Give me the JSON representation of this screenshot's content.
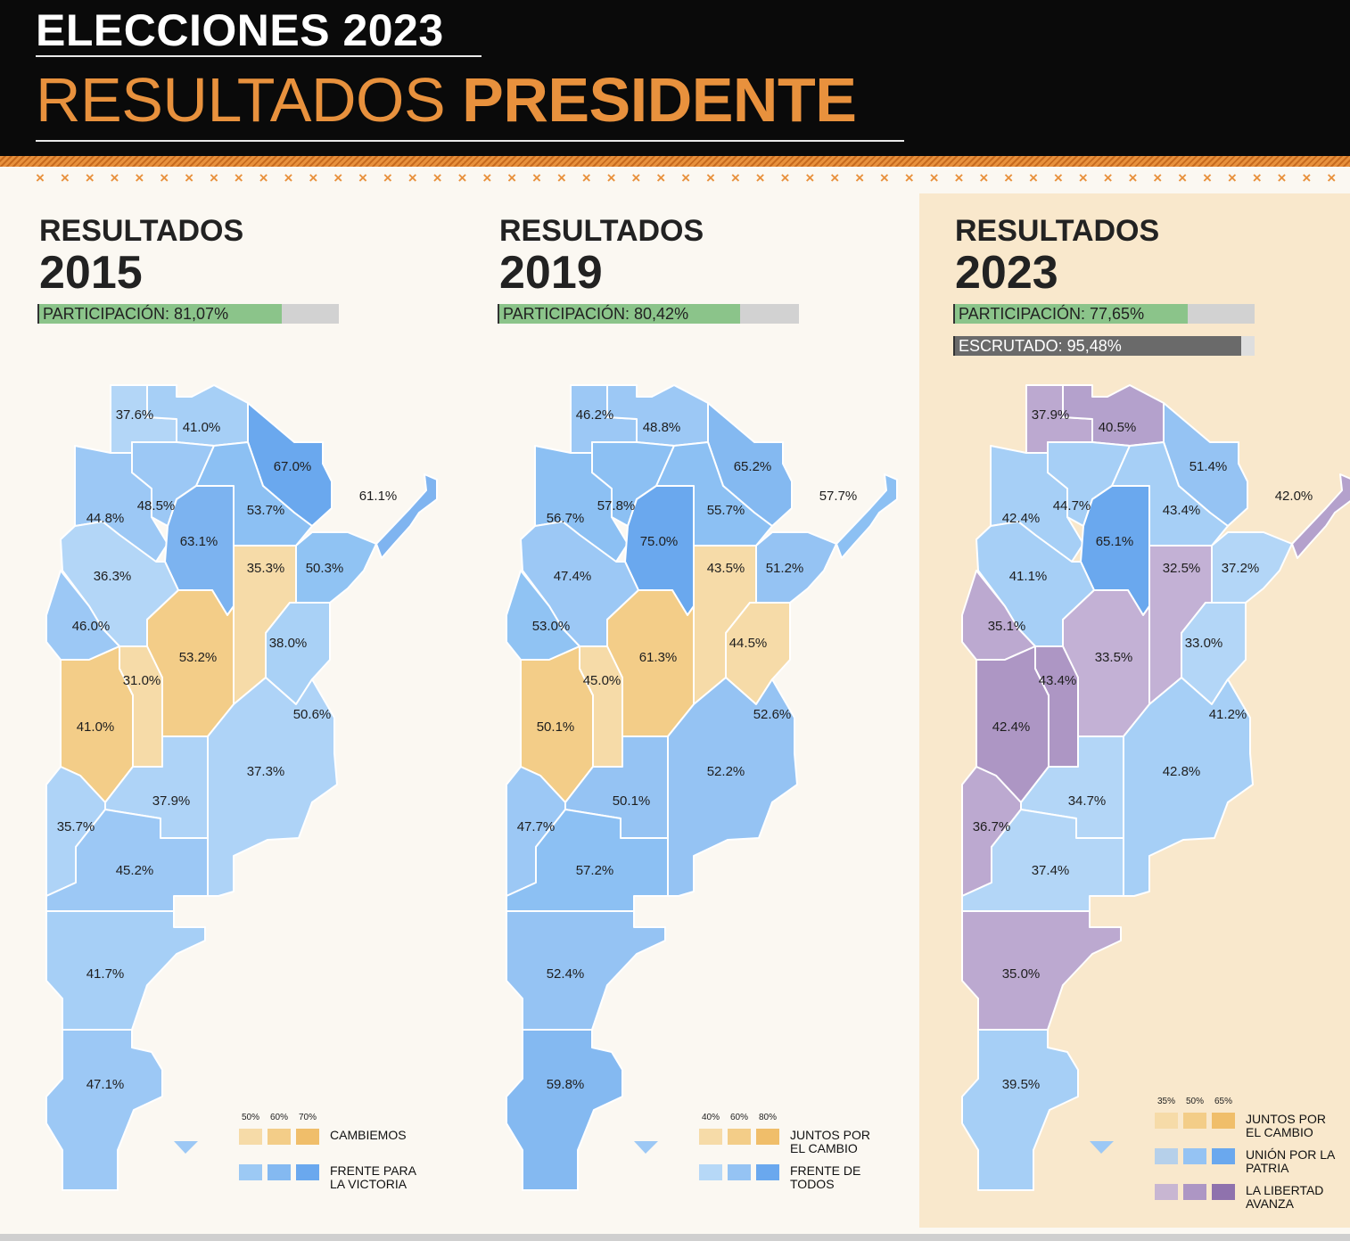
{
  "header": {
    "kicker": "ELECCIONES 2023",
    "title_part1": "RESULTADOS",
    "title_part2": "PRESIDENTE"
  },
  "colors": {
    "header_bg": "#0a0a0a",
    "accent": "#e8913d",
    "page_bg": "#fbf8f2",
    "highlight_bg": "#f9e8cc"
  },
  "decoration": "× × × × × × × × × × × × × × × × × × × × × × × × × × × × × × × × × × × × × × × × × × × × × × × × × × × × × × × × × × × × × × × × × × × × × × × × × × × ×",
  "panels": [
    {
      "label": "RESULTADOS",
      "year": "2015",
      "participation_label": "PARTICIPACIÓN: 81,07%",
      "participation": 81.07,
      "scale": [
        "50%",
        "60%",
        "70%"
      ],
      "legend": [
        {
          "name": "CAMBIEMOS",
          "colors": [
            "#f6dba8",
            "#f3cd88",
            "#f0be6a"
          ]
        },
        {
          "name": "FRENTE PARA LA VICTORIA",
          "colors": [
            "#9cc9f4",
            "#84b9f1",
            "#6aa8ee"
          ]
        }
      ],
      "provinces": [
        {
          "id": "jujuy",
          "value": "37.6%",
          "color": "#b3d6f7"
        },
        {
          "id": "salta-n",
          "value": "41.0%",
          "color": "#a6cff6"
        },
        {
          "id": "formosa",
          "value": "67.0%",
          "color": "#6aa8ee"
        },
        {
          "id": "misiones",
          "value": "61.1%",
          "color": "#7fb4f0"
        },
        {
          "id": "catamarca",
          "value": "44.8%",
          "color": "#9cc8f5"
        },
        {
          "id": "tucuman",
          "value": "48.5%",
          "color": "#9cc8f5"
        },
        {
          "id": "sgo-estero",
          "value": "63.1%",
          "color": "#7cb3f0"
        },
        {
          "id": "chaco",
          "value": "53.7%",
          "color": "#8cc0f3"
        },
        {
          "id": "corrientes",
          "value": "50.3%",
          "color": "#90c3f3"
        },
        {
          "id": "la-rioja",
          "value": "36.3%",
          "color": "#b3d6f7"
        },
        {
          "id": "santa-fe",
          "value": "35.3%",
          "color": "#f6dba8"
        },
        {
          "id": "san-juan",
          "value": "46.0%",
          "color": "#9cc8f5"
        },
        {
          "id": "cordoba",
          "value": "53.2%",
          "color": "#f3cd88"
        },
        {
          "id": "entre-rios",
          "value": "38.0%",
          "color": "#a9d1f6"
        },
        {
          "id": "san-luis",
          "value": "31.0%",
          "color": "#f6dba8"
        },
        {
          "id": "caba",
          "value": "50.6%",
          "color": "#f3cd88"
        },
        {
          "id": "mendoza",
          "value": "41.0%",
          "color": "#f3cd88"
        },
        {
          "id": "buenos-aires",
          "value": "37.3%",
          "color": "#aed3f7"
        },
        {
          "id": "la-pampa",
          "value": "37.9%",
          "color": "#aed3f7"
        },
        {
          "id": "neuquen",
          "value": "35.7%",
          "color": "#aed3f7"
        },
        {
          "id": "rio-negro",
          "value": "45.2%",
          "color": "#9cc8f5"
        },
        {
          "id": "chubut",
          "value": "41.7%",
          "color": "#a6cff6"
        },
        {
          "id": "santa-cruz",
          "value": "47.1%",
          "color": "#9cc8f5"
        }
      ]
    },
    {
      "label": "RESULTADOS",
      "year": "2019",
      "participation_label": "PARTICIPACIÓN: 80,42%",
      "participation": 80.42,
      "scale": [
        "40%",
        "60%",
        "80%"
      ],
      "legend": [
        {
          "name": "JUNTOS POR EL CAMBIO",
          "colors": [
            "#f6dba8",
            "#f3cd88",
            "#f0be6a"
          ]
        },
        {
          "name": "FRENTE DE TODOS",
          "colors": [
            "#b6d8f7",
            "#95c3f3",
            "#6aa8ee"
          ]
        }
      ],
      "provinces": [
        {
          "id": "jujuy",
          "value": "46.2%",
          "color": "#9cc8f5"
        },
        {
          "id": "salta-n",
          "value": "48.8%",
          "color": "#9cc8f5"
        },
        {
          "id": "formosa",
          "value": "65.2%",
          "color": "#84b9f1"
        },
        {
          "id": "misiones",
          "value": "57.7%",
          "color": "#8cc0f3"
        },
        {
          "id": "catamarca",
          "value": "56.7%",
          "color": "#8cc0f3"
        },
        {
          "id": "tucuman",
          "value": "57.8%",
          "color": "#8cc0f3"
        },
        {
          "id": "sgo-estero",
          "value": "75.0%",
          "color": "#6aa8ee"
        },
        {
          "id": "chaco",
          "value": "55.7%",
          "color": "#8cc0f3"
        },
        {
          "id": "corrientes",
          "value": "51.2%",
          "color": "#95c3f3"
        },
        {
          "id": "la-rioja",
          "value": "47.4%",
          "color": "#9cc8f5"
        },
        {
          "id": "santa-fe",
          "value": "43.5%",
          "color": "#f6dba8"
        },
        {
          "id": "san-juan",
          "value": "53.0%",
          "color": "#90c3f3"
        },
        {
          "id": "cordoba",
          "value": "61.3%",
          "color": "#f3cd88"
        },
        {
          "id": "entre-rios",
          "value": "44.5%",
          "color": "#f6dba8"
        },
        {
          "id": "san-luis",
          "value": "45.0%",
          "color": "#f6dba8"
        },
        {
          "id": "caba",
          "value": "52.6%",
          "color": "#f3cd88"
        },
        {
          "id": "mendoza",
          "value": "50.1%",
          "color": "#f3cd88"
        },
        {
          "id": "buenos-aires",
          "value": "52.2%",
          "color": "#95c3f3"
        },
        {
          "id": "la-pampa",
          "value": "50.1%",
          "color": "#95c3f3"
        },
        {
          "id": "neuquen",
          "value": "47.7%",
          "color": "#9cc8f5"
        },
        {
          "id": "rio-negro",
          "value": "57.2%",
          "color": "#8cc0f3"
        },
        {
          "id": "chubut",
          "value": "52.4%",
          "color": "#95c3f3"
        },
        {
          "id": "santa-cruz",
          "value": "59.8%",
          "color": "#84b9f1"
        }
      ]
    },
    {
      "label": "RESULTADOS",
      "year": "2023",
      "participation_label": "PARTICIPACIÓN: 77,65%",
      "participation": 77.65,
      "scrutinized_label": "ESCRUTADO: 95,48%",
      "scrutinized": 95.48,
      "scale": [
        "35%",
        "50%",
        "65%"
      ],
      "legend": [
        {
          "name": "JUNTOS POR EL CAMBIO",
          "colors": [
            "#f6dba8",
            "#f3cd88",
            "#f0be6a"
          ]
        },
        {
          "name": "UNIÓN POR LA PATRIA",
          "colors": [
            "#b6d0ea",
            "#95c3f3",
            "#6aa8ee"
          ]
        },
        {
          "name": "LA LIBERTAD AVANZA",
          "colors": [
            "#c8b6d2",
            "#ad96c4",
            "#8f72ad"
          ]
        }
      ],
      "provinces": [
        {
          "id": "jujuy",
          "value": "37.9%",
          "color": "#bca9d0"
        },
        {
          "id": "salta-n",
          "value": "40.5%",
          "color": "#b4a1cc"
        },
        {
          "id": "formosa",
          "value": "51.4%",
          "color": "#95c3f3"
        },
        {
          "id": "misiones",
          "value": "42.0%",
          "color": "#b4a1cc"
        },
        {
          "id": "catamarca",
          "value": "42.4%",
          "color": "#a6cff6"
        },
        {
          "id": "tucuman",
          "value": "44.7%",
          "color": "#a6cff6"
        },
        {
          "id": "sgo-estero",
          "value": "65.1%",
          "color": "#6aa8ee"
        },
        {
          "id": "chaco",
          "value": "43.4%",
          "color": "#a6cff6"
        },
        {
          "id": "corrientes",
          "value": "37.2%",
          "color": "#b3d6f7"
        },
        {
          "id": "la-rioja",
          "value": "41.1%",
          "color": "#a6cff6"
        },
        {
          "id": "santa-fe",
          "value": "32.5%",
          "color": "#c3b1d5"
        },
        {
          "id": "san-juan",
          "value": "35.1%",
          "color": "#bca9d0"
        },
        {
          "id": "cordoba",
          "value": "33.5%",
          "color": "#c3b1d5"
        },
        {
          "id": "entre-rios",
          "value": "33.0%",
          "color": "#b3d6f7"
        },
        {
          "id": "san-luis",
          "value": "43.4%",
          "color": "#ad96c4"
        },
        {
          "id": "caba",
          "value": "41.2%",
          "color": "#f3cd88"
        },
        {
          "id": "mendoza",
          "value": "42.4%",
          "color": "#ad96c4"
        },
        {
          "id": "buenos-aires",
          "value": "42.8%",
          "color": "#a6cff6"
        },
        {
          "id": "la-pampa",
          "value": "34.7%",
          "color": "#b3d6f7"
        },
        {
          "id": "neuquen",
          "value": "36.7%",
          "color": "#bca9d0"
        },
        {
          "id": "rio-negro",
          "value": "37.4%",
          "color": "#b3d6f7"
        },
        {
          "id": "chubut",
          "value": "35.0%",
          "color": "#bca9d0"
        },
        {
          "id": "santa-cruz",
          "value": "39.5%",
          "color": "#a6cff6"
        }
      ]
    }
  ]
}
